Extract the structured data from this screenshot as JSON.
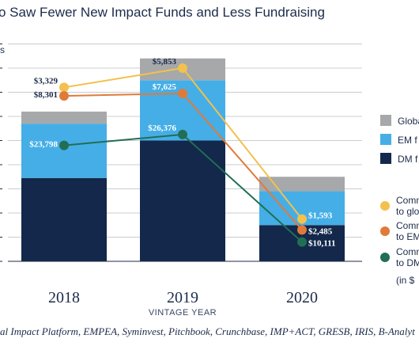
{
  "title": "o Saw Fewer New Impact Funds and Less Fundraising",
  "source": "al Impact Platform, EMPEA, Syminvest, Pitchbook, Crunchbase, IMP+ACT, GRESB, IRIS, B-Analyt",
  "chart_data": {
    "type": "bar",
    "stacked": true,
    "categories": [
      "2018",
      "2019",
      "2020"
    ],
    "xlabel": "VINTAGE YEAR",
    "ylabel": "",
    "y_tick_fragment": "s",
    "ylim": [
      0,
      90
    ],
    "grid": true,
    "series": [
      {
        "name": "DM f",
        "values": [
          34.5,
          50,
          15
        ]
      },
      {
        "name": "EM f",
        "values": [
          22.5,
          25,
          14
        ]
      },
      {
        "name": "Globa",
        "values": [
          5,
          9,
          6
        ]
      }
    ],
    "lines": [
      {
        "name": "Comm to glo",
        "values": [
          3329,
          5853,
          1593
        ],
        "labels": [
          "$3,329",
          "$5,853",
          "$1,593"
        ],
        "plot_y": [
          72,
          80,
          17.5
        ]
      },
      {
        "name": "Comm to EM",
        "values": [
          8301,
          7625,
          2485
        ],
        "labels": [
          "$8,301",
          "$7,625",
          "$2,485"
        ],
        "plot_y": [
          68.5,
          69.5,
          13
        ]
      },
      {
        "name": "Comm to DM",
        "values": [
          23798,
          26376,
          10111
        ],
        "labels": [
          "$23,798",
          "$26,376",
          "$10,111"
        ],
        "plot_y": [
          48,
          52.5,
          8
        ]
      }
    ],
    "legend_position": "right",
    "legend_note": "(in $",
    "colors": {
      "dm": "#13284b",
      "em": "#45aee6",
      "global": "#a6a8aa",
      "line_global": "#f2c14e",
      "line_em": "#e07a3a",
      "line_dm": "#216e55",
      "label_dark": "#1c2b4a",
      "label_light": "#ffffff"
    }
  }
}
